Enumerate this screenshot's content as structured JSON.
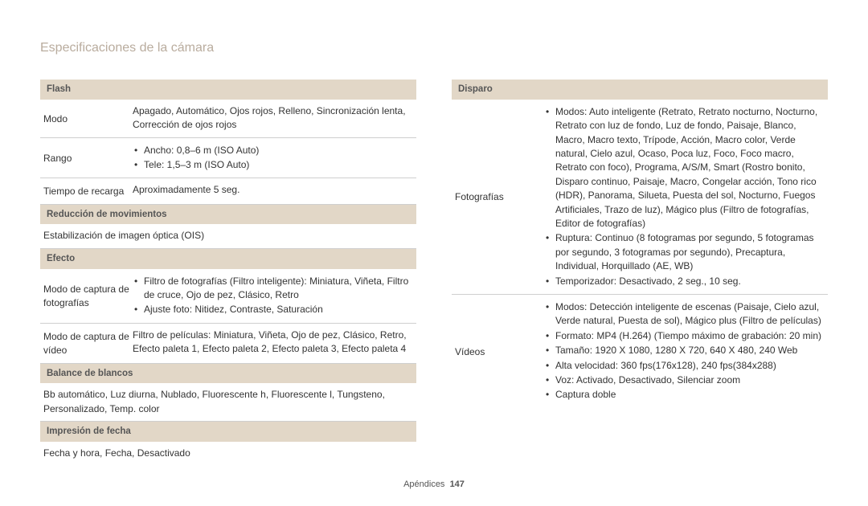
{
  "page_title": "Especificaciones de la cámara",
  "footer": {
    "section": "Apéndices",
    "page": "147"
  },
  "left": {
    "flash": {
      "header": "Flash",
      "mode_label": "Modo",
      "mode_value": "Apagado, Automático, Ojos rojos, Relleno, Sincronización lenta, Corrección de ojos rojos",
      "range_label": "Rango",
      "range_b1": "Ancho: 0,8–6 m (ISO Auto)",
      "range_b2": "Tele: 1,5–3 m (ISO Auto)",
      "recharge_label": "Tiempo de recarga",
      "recharge_value": "Aproximadamente 5 seg."
    },
    "shake": {
      "header": "Reducción de movimientos",
      "value": "Estabilización de imagen óptica (OIS)"
    },
    "effect": {
      "header": "Efecto",
      "photo_label": "Modo de captura de fotografías",
      "photo_b1": "Filtro de fotografías (Filtro inteligente): Miniatura, Viñeta, Filtro de cruce, Ojo de pez, Clásico, Retro",
      "photo_b2": "Ajuste foto: Nitidez, Contraste, Saturación",
      "video_label": "Modo de captura de vídeo",
      "video_value": "Filtro de películas: Miniatura, Viñeta, Ojo de pez, Clásico, Retro, Efecto paleta 1, Efecto paleta 2, Efecto paleta 3, Efecto paleta 4"
    },
    "wb": {
      "header": "Balance de blancos",
      "value": "Bb automático, Luz diurna, Nublado, Fluorescente h, Fluorescente l, Tungsteno, Personalizado, Temp. color"
    },
    "date": {
      "header": "Impresión de fecha",
      "value": "Fecha y hora, Fecha, Desactivado"
    }
  },
  "right": {
    "header": "Disparo",
    "photos_label": "Fotografías",
    "photos_b1": "Modos: Auto inteligente (Retrato, Retrato nocturno, Nocturno, Retrato con luz de fondo, Luz de fondo, Paisaje, Blanco, Macro, Macro texto, Trípode, Acción, Macro color, Verde natural, Cielo azul, Ocaso, Poca luz, Foco, Foco macro, Retrato con foco), Programa, A/S/M, Smart (Rostro bonito, Disparo continuo, Paisaje, Macro, Congelar acción, Tono rico (HDR), Panorama, Silueta, Puesta del sol, Nocturno, Fuegos Artificiales, Trazo de luz), Mágico plus (Filtro de fotografías, Editor de fotografías)",
    "photos_b2": "Ruptura: Continuo (8 fotogramas por segundo, 5 fotogramas por segundo, 3 fotogramas por segundo), Precaptura, Individual, Horquillado (AE, WB)",
    "photos_b3": "Temporizador: Desactivado, 2 seg., 10 seg.",
    "videos_label": "Vídeos",
    "videos_b1": "Modos: Detección inteligente de escenas (Paisaje, Cielo azul, Verde natural, Puesta de sol), Mágico plus (Filtro de películas)",
    "videos_b2": "Formato: MP4 (H.264) (Tiempo máximo de grabación: 20 min)",
    "videos_b3": "Tamaño: 1920 X 1080, 1280 X 720, 640 X 480, 240 Web",
    "videos_b4": "Alta velocidad: 360 fps(176x128), 240 fps(384x288)",
    "videos_b5": "Voz: Activado, Desactivado, Silenciar zoom",
    "videos_b6": "Captura doble"
  }
}
